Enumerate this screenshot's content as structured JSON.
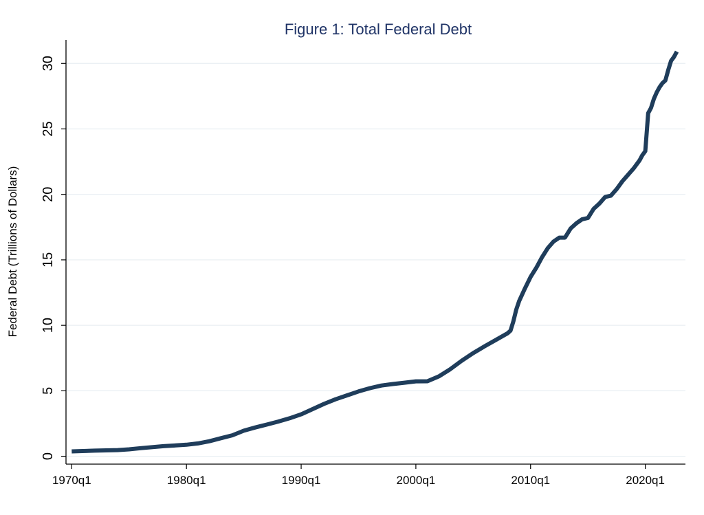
{
  "chart_data": {
    "type": "line",
    "title": "Figure 1: Total Federal Debt",
    "xlabel": "",
    "ylabel": "Federal Debt (Trillions of Dollars)",
    "x_unit": "quarter",
    "xlim": [
      1969.5,
      2023.5
    ],
    "ylim": [
      -0.6,
      31.8
    ],
    "y_ticks": [
      0,
      5,
      10,
      15,
      20,
      25,
      30
    ],
    "x_ticks": [
      {
        "value": 1970,
        "label": "1970q1"
      },
      {
        "value": 1980,
        "label": "1980q1"
      },
      {
        "value": 1990,
        "label": "1990q1"
      },
      {
        "value": 2000,
        "label": "2000q1"
      },
      {
        "value": 2010,
        "label": "2010q1"
      },
      {
        "value": 2020,
        "label": "2020q1"
      }
    ],
    "grid": true,
    "line_color": "#1f3d5b",
    "title_color": "#1f3366",
    "grid_color": "#e8eef2",
    "series": [
      {
        "x": [
          1970.0,
          1972.0,
          1974.0,
          1975.0,
          1976.0,
          1978.0,
          1980.0,
          1981.0,
          1982.0,
          1983.0,
          1984.0,
          1985.0,
          1986.0,
          1987.0,
          1988.0,
          1989.0,
          1990.0,
          1991.0,
          1992.0,
          1993.0,
          1994.0,
          1995.0,
          1996.0,
          1997.0,
          1998.0,
          1999.0,
          2000.0,
          2001.0,
          2002.0,
          2003.0,
          2004.0,
          2005.0,
          2006.0,
          2007.0,
          2008.0,
          2008.25,
          2008.5,
          2008.75,
          2009.0,
          2009.5,
          2010.0,
          2010.5,
          2011.0,
          2011.5,
          2012.0,
          2012.5,
          2013.0,
          2013.5,
          2014.0,
          2014.5,
          2015.0,
          2015.5,
          2016.0,
          2016.5,
          2017.0,
          2017.5,
          2018.0,
          2018.5,
          2019.0,
          2019.5,
          2019.75,
          2020.0,
          2020.25,
          2020.5,
          2020.75,
          2021.0,
          2021.25,
          2021.5,
          2021.75,
          2022.0,
          2022.25,
          2022.5,
          2022.75
        ],
        "y": [
          0.37,
          0.43,
          0.47,
          0.53,
          0.62,
          0.77,
          0.88,
          0.98,
          1.15,
          1.38,
          1.6,
          1.95,
          2.2,
          2.42,
          2.65,
          2.9,
          3.2,
          3.6,
          4.0,
          4.35,
          4.65,
          4.95,
          5.2,
          5.4,
          5.52,
          5.62,
          5.72,
          5.73,
          6.1,
          6.65,
          7.3,
          7.88,
          8.4,
          8.9,
          9.4,
          9.6,
          10.3,
          11.2,
          11.85,
          12.8,
          13.7,
          14.4,
          15.2,
          15.9,
          16.4,
          16.7,
          16.7,
          17.4,
          17.8,
          18.1,
          18.2,
          18.9,
          19.3,
          19.8,
          19.9,
          20.4,
          21.0,
          21.5,
          22.0,
          22.6,
          23.0,
          23.3,
          26.2,
          26.6,
          27.3,
          27.8,
          28.2,
          28.5,
          28.7,
          29.5,
          30.2,
          30.5,
          30.9
        ]
      }
    ]
  }
}
